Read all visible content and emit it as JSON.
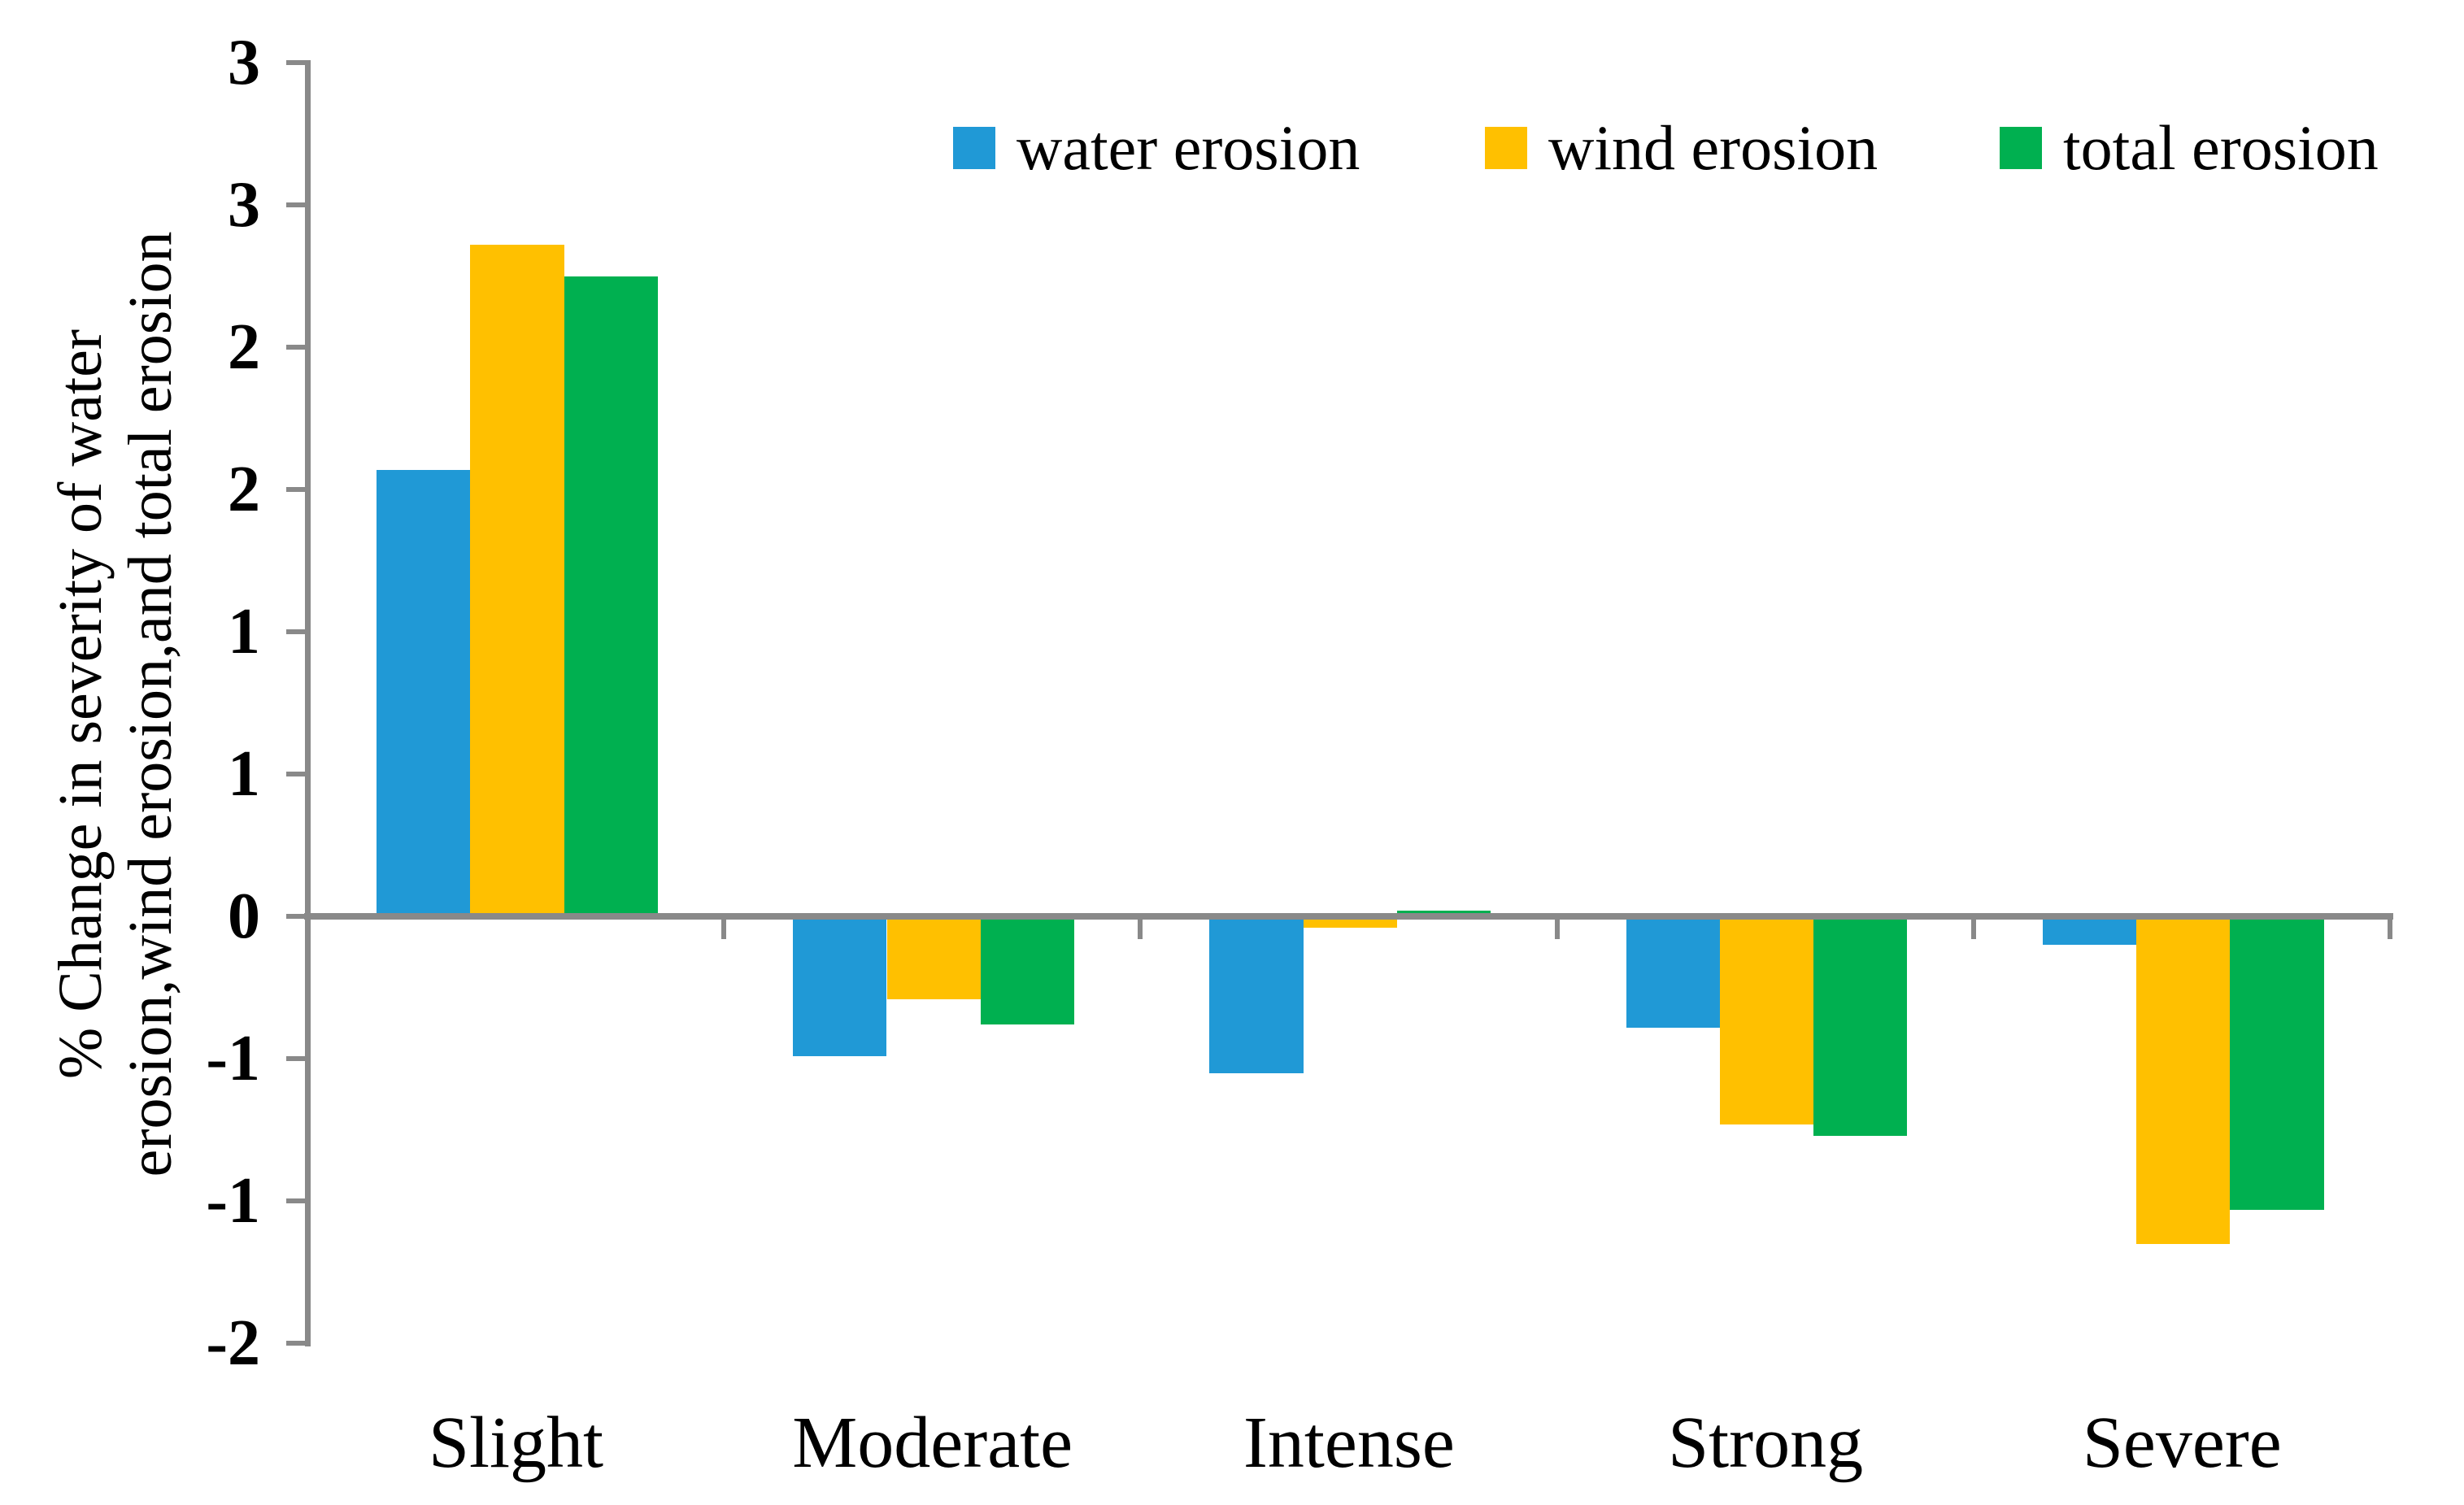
{
  "chart_data": {
    "type": "bar",
    "title": "",
    "categories": [
      "Slight",
      "Moderate",
      "Intense",
      "Strong",
      "Severe"
    ],
    "series": [
      {
        "name": "water erosion",
        "color": "#2099D6",
        "values": [
          1.57,
          -0.49,
          -0.55,
          -0.39,
          -0.1
        ]
      },
      {
        "name": "wind erosion",
        "color": "#FFC000",
        "values": [
          2.36,
          -0.29,
          -0.04,
          -0.73,
          -1.15
        ]
      },
      {
        "name": "total erosion",
        "color": "#00B050",
        "values": [
          2.25,
          -0.38,
          0.02,
          -0.77,
          -1.03
        ]
      }
    ],
    "ylabel_lines": [
      "% Change in severity of water",
      "erosion,wind erosion,and total erosion"
    ],
    "xlabel": "",
    "y_axis": {
      "min": -1.5,
      "max": 3.0,
      "tick_step": 0.5,
      "tick_values": [
        3.0,
        2.5,
        2.0,
        1.5,
        1.0,
        0.5,
        0.0,
        -0.5,
        -1.0,
        -1.5
      ],
      "tick_labels": [
        "3",
        "3",
        "2",
        "2",
        "1",
        "1",
        "0",
        "-1",
        "-1",
        "-2"
      ]
    },
    "legend_position": "top-right",
    "grid": false,
    "axis_color": "#898989",
    "text_color": "#000000",
    "background_color": "#FFFFFF"
  }
}
